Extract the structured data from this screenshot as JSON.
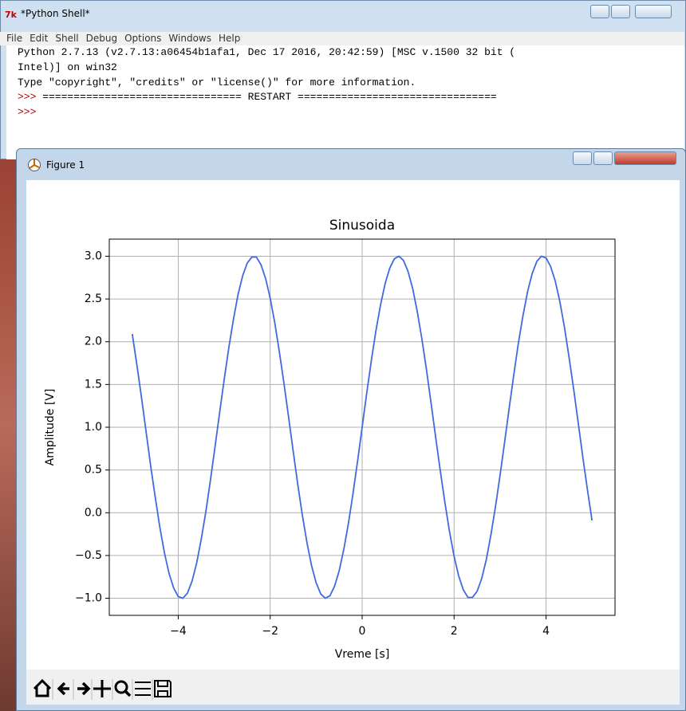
{
  "shell": {
    "title": "*Python Shell*",
    "menu": [
      "File",
      "Edit",
      "Shell",
      "Debug",
      "Options",
      "Windows",
      "Help"
    ],
    "lines": [
      {
        "text": "Python 2.7.13 (v2.7.13:a06454b1afa1, Dec 17 2016, 20:42:59) [MSC v.1500 32 bit ("
      },
      {
        "text": "Intel)] on win32"
      },
      {
        "text": "Type \"copyright\", \"credits\" or \"license()\" for more information."
      },
      {
        "prompt": ">>>",
        "text": " ================================ RESTART ================================"
      },
      {
        "prompt": ">>>"
      }
    ]
  },
  "figure": {
    "title": "Figure 1"
  },
  "chart_data": {
    "type": "line",
    "title": "Sinusoida",
    "x_label": "Vreme [s]",
    "y_label": "Amplitude [V]",
    "color": "#4169e1",
    "grid": true,
    "x": [
      -5,
      -4.9,
      -4.8,
      -4.7,
      -4.6,
      -4.5,
      -4.4,
      -4.3,
      -4.2,
      -4.1,
      -4,
      -3.9,
      -3.8,
      -3.7,
      -3.6,
      -3.5,
      -3.4,
      -3.3,
      -3.2,
      -3.1,
      -3,
      -2.9,
      -2.8,
      -2.7,
      -2.6,
      -2.5,
      -2.4,
      -2.3,
      -2.2,
      -2.1,
      -2,
      -1.9,
      -1.8,
      -1.7,
      -1.6,
      -1.5,
      -1.4,
      -1.3,
      -1.2,
      -1.1,
      -1,
      -0.9,
      -0.8,
      -0.7,
      -0.6,
      -0.5,
      -0.4,
      -0.3,
      -0.2,
      -0.1,
      0,
      0.1,
      0.2,
      0.3,
      0.4,
      0.5,
      0.6,
      0.7,
      0.8,
      0.9,
      1,
      1.1,
      1.2,
      1.3,
      1.4,
      1.5,
      1.6,
      1.7,
      1.8,
      1.9,
      2,
      2.1,
      2.2,
      2.3,
      2.4,
      2.5,
      2.6,
      2.7,
      2.8,
      2.9,
      3,
      3.1,
      3.2,
      3.3,
      3.4,
      3.5,
      3.6,
      3.7,
      3.8,
      3.9,
      4,
      4.1,
      4.2,
      4.3,
      4.4,
      4.5,
      4.6,
      4.7,
      4.8,
      4.9,
      5
    ],
    "values": [
      2.09,
      1.73,
      1.35,
      0.95,
      0.55,
      0.18,
      -0.17,
      -0.47,
      -0.71,
      -0.88,
      -0.98,
      -1.0,
      -0.94,
      -0.8,
      -0.59,
      -0.31,
      0.01,
      0.38,
      0.77,
      1.17,
      1.56,
      1.93,
      2.26,
      2.55,
      2.77,
      2.92,
      2.99,
      2.99,
      2.9,
      2.74,
      2.51,
      2.22,
      1.88,
      1.51,
      1.12,
      0.72,
      0.33,
      -0.03,
      -0.35,
      -0.62,
      -0.82,
      -0.95,
      -1.0,
      -0.97,
      -0.86,
      -0.68,
      -0.43,
      -0.13,
      0.22,
      0.6,
      1.0,
      1.4,
      1.78,
      2.13,
      2.43,
      2.68,
      2.86,
      2.97,
      3.0,
      2.95,
      2.82,
      2.62,
      2.35,
      2.03,
      1.67,
      1.28,
      0.88,
      0.49,
      0.12,
      -0.22,
      -0.51,
      -0.74,
      -0.9,
      -0.99,
      -0.99,
      -0.92,
      -0.77,
      -0.55,
      -0.26,
      0.07,
      0.44,
      0.83,
      1.23,
      1.62,
      1.99,
      2.31,
      2.59,
      2.8,
      2.94,
      3.0,
      2.98,
      2.88,
      2.71,
      2.47,
      2.17,
      1.82,
      1.45,
      1.05,
      0.65,
      0.27,
      -0.09
    ],
    "xlim": [
      -5.5,
      5.5
    ],
    "ylim": [
      -1.2,
      3.2
    ],
    "xticks": [
      {
        "value": -4,
        "label": "−4"
      },
      {
        "value": -2,
        "label": "−2"
      },
      0,
      2,
      4
    ],
    "yticks": [
      {
        "value": -1,
        "label": "−1.0"
      },
      {
        "value": -0.5,
        "label": "−0.5"
      },
      {
        "value": 0,
        "label": "0.0"
      },
      {
        "value": 0.5,
        "label": "0.5"
      },
      {
        "value": 1,
        "label": "1.0"
      },
      {
        "value": 1.5,
        "label": "1.5"
      },
      {
        "value": 2,
        "label": "2.0"
      },
      {
        "value": 2.5,
        "label": "2.5"
      },
      {
        "value": 3,
        "label": "3.0"
      }
    ]
  }
}
